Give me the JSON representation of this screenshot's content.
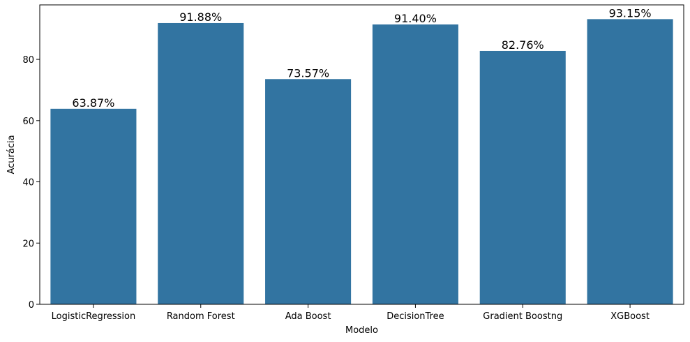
{
  "chart_data": {
    "type": "bar",
    "title": "",
    "xlabel": "Modelo",
    "ylabel": "Acurácia",
    "categories": [
      "LogisticRegression",
      "Random Forest",
      "Ada Boost",
      "DecisionTree",
      "Gradient Boostng",
      "XGBoost"
    ],
    "values": [
      63.87,
      91.88,
      73.57,
      91.4,
      82.76,
      93.15
    ],
    "data_labels": [
      "63.87%",
      "91.88%",
      "73.57%",
      "91.40%",
      "82.76%",
      "93.15%"
    ],
    "ylim": [
      0,
      97.8
    ],
    "yticks": [
      0,
      20,
      40,
      60,
      80
    ],
    "bar_color": "#3274a1",
    "grid": false,
    "legend": "none"
  }
}
